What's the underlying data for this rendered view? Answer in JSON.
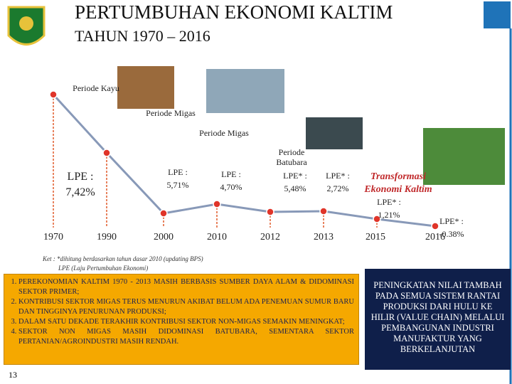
{
  "header": {
    "title": "PERTUMBUHAN EKONOMI KALTIM",
    "subtitle": "TAHUN 1970 – 2016"
  },
  "years": [
    "1970",
    "1990",
    "2000",
    "2010",
    "2012",
    "2013",
    "2015",
    "2016"
  ],
  "periods": [
    "Periode Kayu",
    "Periode Migas",
    "Periode Migas",
    "Periode Batubara"
  ],
  "lpe": [
    {
      "label": "LPE :",
      "value": "7,42%"
    },
    {
      "label": "LPE :",
      "value": "5,71%"
    },
    {
      "label": "LPE :",
      "value": "4,70%"
    },
    {
      "label": "LPE* :",
      "value": "5,48%"
    },
    {
      "label": "LPE* :",
      "value": "2,72%"
    },
    {
      "label": "LPE* :",
      "value": "1,21%"
    },
    {
      "label": "LPE* :",
      "value": "-0.38%"
    }
  ],
  "transformation": "Transformasi Ekonomi Kaltim",
  "notes": [
    "Ket : *dihitung berdasarkan tahun dasar 2010 (updating BPS)",
    "LPE (Laju Pertumbuhan Ekonomi)"
  ],
  "points": [
    "PEREKONOMIAN KALTIM 1970 - 2013 MASIH BERBASIS SUMBER DAYA ALAM & DIDOMINASI SEKTOR PRIMER;",
    "KONTRIBUSI SEKTOR MIGAS TERUS MENURUN AKIBAT BELUM ADA PENEMUAN SUMUR BARU DAN TINGGINYA PENURUNAN PRODUKSI;",
    "DALAM SATU DEKADE TERAKHIR KONTRIBUSI SEKTOR NON-MIGAS SEMAKIN MENINGKAT;",
    "SEKTOR NON MIGAS MASIH DIDOMINASI BATUBARA, SEMENTARA SEKTOR PERTANIAN/AGROINDUSTRI MASIH RENDAH."
  ],
  "strategy": "PENINGKATAN NILAI TAMBAH PADA SEMUA SISTEM RANTAI PRODUKSI DARI HULU KE HILIR (VALUE CHAIN) MELALUI PEMBANGUNAN INDUSTRI MANUFAKTUR YANG BERKELANJUTAN",
  "page_number": "13"
}
